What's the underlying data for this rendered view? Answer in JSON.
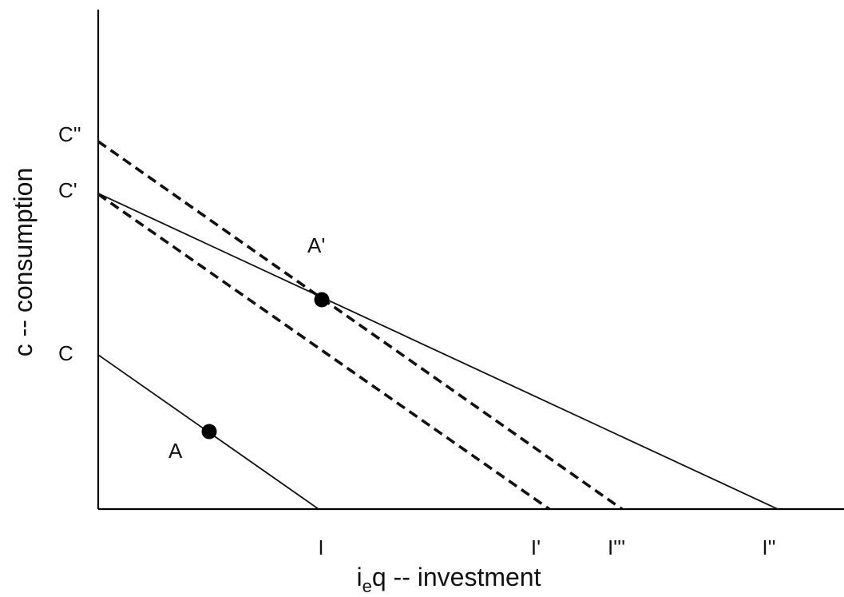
{
  "axes": {
    "x_title_main": "i",
    "x_title_sub": "e",
    "x_title_rest": "q -- investment",
    "y_title": "c -- consumption"
  },
  "y_labels": {
    "c": "C",
    "c_prime": "C'",
    "c_double_prime": "C''"
  },
  "x_labels": {
    "i": "I",
    "i_prime": "I'",
    "i_triple_prime": "I'''",
    "i_double_prime": "I''"
  },
  "points": {
    "a": "A",
    "a_prime": "A'"
  }
}
